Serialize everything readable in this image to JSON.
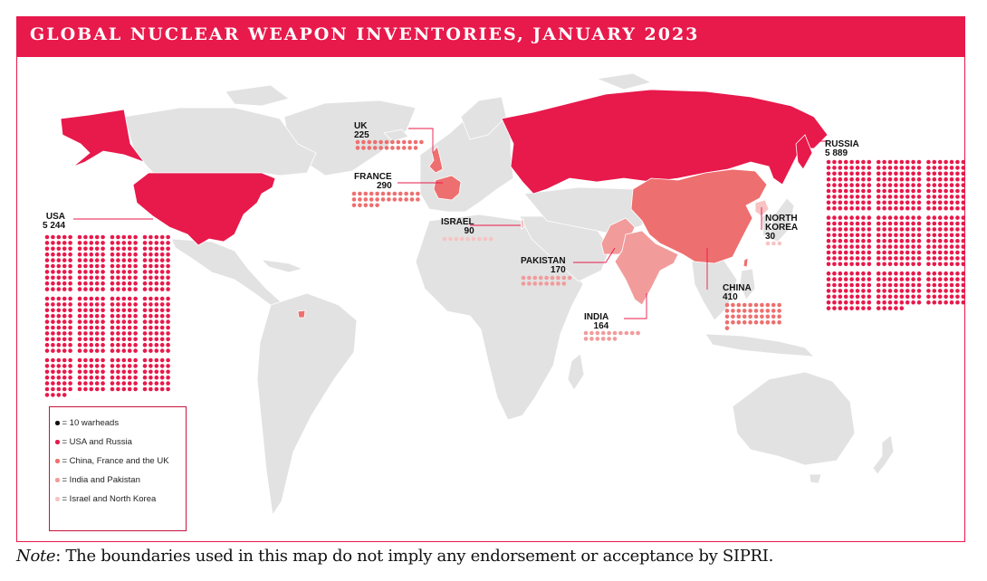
{
  "title": "GLOBAL NUCLEAR WEAPON INVENTORIES, JANUARY 2023",
  "colors": {
    "accent": "#e8194b",
    "usa_russia": "#e8194b",
    "china_france_uk": "#ee6f6f",
    "india_pakistan": "#f29b9b",
    "israel_nk": "#f7c3c3",
    "land": "#e2e2e2",
    "legend_border": "#c8143f"
  },
  "countries": [
    {
      "name": "USA",
      "warheads": "5 244"
    },
    {
      "name": "RUSSIA",
      "warheads": "5 889"
    },
    {
      "name": "UK",
      "warheads": "225"
    },
    {
      "name": "FRANCE",
      "warheads": "290"
    },
    {
      "name": "ISRAEL",
      "warheads": "90"
    },
    {
      "name": "PAKISTAN",
      "warheads": "170"
    },
    {
      "name": "INDIA",
      "warheads": "164"
    },
    {
      "name": "CHINA",
      "warheads": "410"
    },
    {
      "name_line1": "NORTH",
      "name_line2": "KOREA",
      "warheads": "30"
    }
  ],
  "legend": [
    {
      "text": "= 10 warheads",
      "color": "#111111"
    },
    {
      "text": "= USA and Russia",
      "color": "#e8194b"
    },
    {
      "text": "= China, France and the UK",
      "color": "#ee6f6f"
    },
    {
      "text": "= India and Pakistan",
      "color": "#f29b9b"
    },
    {
      "text": "= Israel and North Korea",
      "color": "#f7c3c3"
    }
  ],
  "note": {
    "label": "Note",
    "text": ": The boundaries used in this map do not imply any endorsement or acceptance by SIPRI."
  }
}
